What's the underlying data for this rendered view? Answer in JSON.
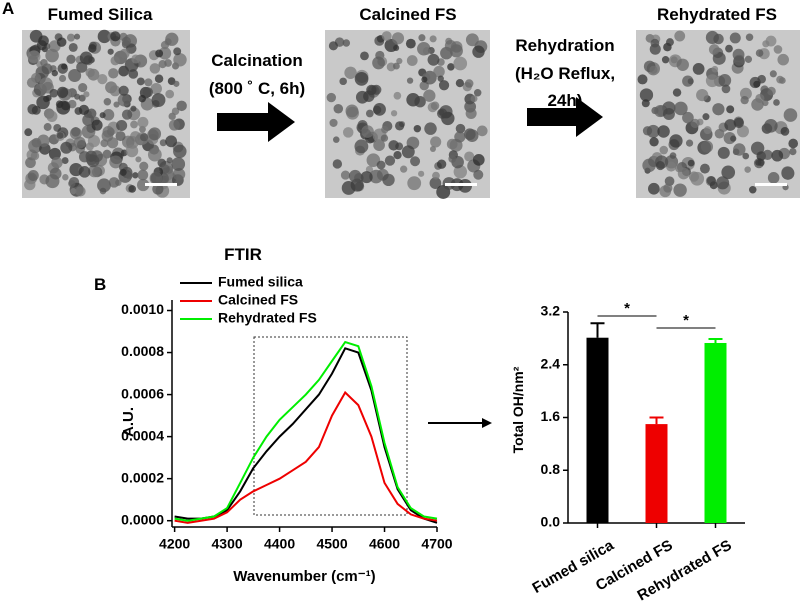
{
  "panel_a": {
    "label": "A",
    "images": [
      "Fumed Silica",
      "Calcined FS",
      "Rehydrated FS"
    ],
    "steps": [
      {
        "lines": [
          "Calcination",
          "(800 ˚ C, 6h)"
        ]
      },
      {
        "lines": [
          "Rehydration",
          "(H₂O Reflux,",
          "24h)"
        ]
      }
    ]
  },
  "panel_b_label": "B",
  "chart_data": [
    {
      "type": "line",
      "title": "FTIR",
      "x_label": "Wavenumber (cm⁻¹)",
      "y_label": "A.U.",
      "x": [
        4200,
        4225,
        4250,
        4275,
        4300,
        4325,
        4350,
        4375,
        4400,
        4425,
        4450,
        4475,
        4500,
        4525,
        4550,
        4575,
        4600,
        4625,
        4650,
        4675,
        4700
      ],
      "series": [
        {
          "name": "Fumed silica",
          "color": "#000000",
          "values": [
            2e-05,
            1e-05,
            1e-05,
            2e-05,
            5e-05,
            0.00014,
            0.00025,
            0.00033,
            0.0004,
            0.00046,
            0.00053,
            0.0006,
            0.0007,
            0.00082,
            0.0008,
            0.00062,
            0.00035,
            0.00015,
            5e-05,
            1e-05,
            -1e-05
          ]
        },
        {
          "name": "Calcined FS",
          "color": "#ee0000",
          "values": [
            0,
            -1e-05,
            0,
            1e-05,
            4e-05,
            0.0001,
            0.00014,
            0.00017,
            0.0002,
            0.00024,
            0.00028,
            0.00035,
            0.0005,
            0.00061,
            0.00055,
            0.0004,
            0.00018,
            8e-05,
            3e-05,
            1e-05,
            0
          ]
        },
        {
          "name": "Rehydrated FS",
          "color": "#00ee00",
          "values": [
            1e-05,
            0,
            1e-05,
            2e-05,
            6e-05,
            0.00018,
            0.0003,
            0.0004,
            0.00048,
            0.00054,
            0.0006,
            0.00067,
            0.00076,
            0.00085,
            0.00083,
            0.00064,
            0.00037,
            0.00016,
            6e-05,
            2e-05,
            1e-05
          ]
        }
      ],
      "xlim": [
        4195,
        4700
      ],
      "xticks": [
        4200,
        4300,
        4400,
        4500,
        4600,
        4700
      ],
      "ylim": [
        -3e-05,
        0.00105
      ],
      "yticks": [
        {
          "value": 0,
          "label": "0.0000"
        },
        {
          "value": 0.0002,
          "label": "0.0002"
        },
        {
          "value": 0.0004,
          "label": "0.0004"
        },
        {
          "value": 0.0006,
          "label": "0.0006"
        },
        {
          "value": 0.0008,
          "label": "0.0008"
        },
        {
          "value": 0.001,
          "label": "0.0010"
        }
      ],
      "legend": "upper left"
    },
    {
      "type": "bar",
      "y_label": "Total OH/nm²",
      "categories": [
        "Fumed silica",
        "Calcined FS",
        "Rehydrated FS"
      ],
      "values": [
        2.81,
        1.5,
        2.73
      ],
      "errors": [
        0.22,
        0.1,
        0.06
      ],
      "colors": [
        "#000000",
        "#ee0000",
        "#00ee00"
      ],
      "ylim": [
        0,
        3.2
      ],
      "yticks": [
        {
          "value": 0,
          "label": "0.0"
        },
        0.8,
        1.6,
        2.4,
        3.2
      ],
      "annotations": [
        "*",
        "*"
      ]
    }
  ]
}
